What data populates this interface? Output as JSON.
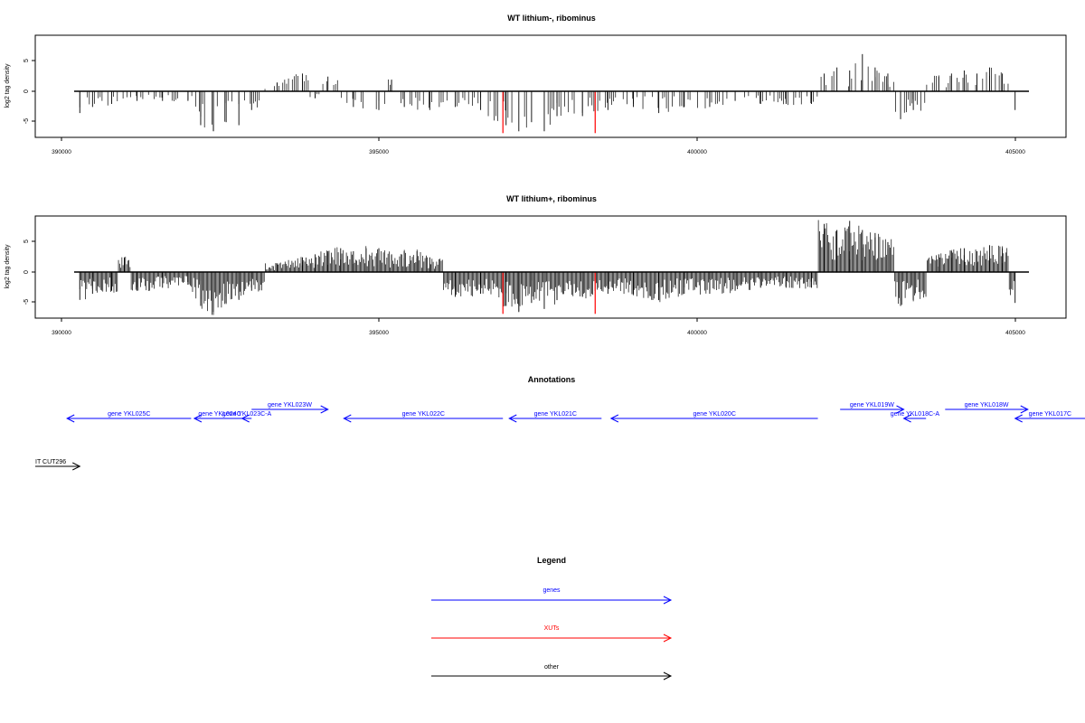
{
  "panels": [
    {
      "title": "WT lithium-, ribominus",
      "ylabel": "log2 tag density",
      "y_ticks": [
        "-5",
        "0",
        "5"
      ],
      "x_ticks": [
        "390000",
        "395000",
        "400000",
        "405000"
      ]
    },
    {
      "title": "WT lithium+, ribominus",
      "ylabel": "log2 tag density",
      "y_ticks": [
        "-5",
        "0",
        "5"
      ],
      "x_ticks": [
        "390000",
        "395000",
        "400000",
        "405000"
      ]
    }
  ],
  "annotations": {
    "title": "Annotations",
    "features": [
      {
        "label": "gene YKL025C",
        "start": 390100,
        "end": 392050,
        "strand": "-",
        "row": 0,
        "color": "#0000ff"
      },
      {
        "label": "gene YKL024C",
        "start": 392100,
        "end": 392900,
        "strand": "-",
        "row": 0,
        "color": "#0000ff"
      },
      {
        "label": "gene YKL023C-A",
        "start": 392850,
        "end": 393000,
        "strand": "-",
        "row": 0,
        "color": "#0000ff"
      },
      {
        "label": "gene YKL023W",
        "start": 393000,
        "end": 394200,
        "strand": "+",
        "row": 1,
        "color": "#0000ff"
      },
      {
        "label": "gene YKL022C",
        "start": 394450,
        "end": 396950,
        "strand": "-",
        "row": 0,
        "color": "#0000ff"
      },
      {
        "label": "gene YKL021C",
        "start": 397050,
        "end": 398500,
        "strand": "-",
        "row": 0,
        "color": "#0000ff"
      },
      {
        "label": "gene YKL020C",
        "start": 398650,
        "end": 401900,
        "strand": "-",
        "row": 0,
        "color": "#0000ff"
      },
      {
        "label": "gene YKL019W",
        "start": 402250,
        "end": 403250,
        "strand": "+",
        "row": 1,
        "color": "#0000ff"
      },
      {
        "label": "gene YKL018C-A",
        "start": 403250,
        "end": 403600,
        "strand": "-",
        "row": 0,
        "color": "#0000ff"
      },
      {
        "label": "gene YKL018W",
        "start": 403900,
        "end": 405200,
        "strand": "+",
        "row": 1,
        "color": "#0000ff"
      },
      {
        "label": "gene YKL017C",
        "start": 405000,
        "end": 406100,
        "strand": "-",
        "row": 0,
        "color": "#0000ff"
      },
      {
        "label": "IT CUT296",
        "start": 389600,
        "end": 390300,
        "strand": "+",
        "row": 3,
        "color": "#000000"
      }
    ]
  },
  "legend": {
    "title": "Legend",
    "items": [
      {
        "label": "genes",
        "color": "#0000ff"
      },
      {
        "label": "XUTs",
        "color": "#ff0000"
      },
      {
        "label": "other",
        "color": "#000000"
      }
    ]
  },
  "chart_data": [
    {
      "type": "bar",
      "title": "WT lithium-, ribominus",
      "xlabel": "",
      "ylabel": "log2 tag density",
      "xlim": [
        389600,
        405800
      ],
      "ylim": [
        -7.5,
        9.3
      ],
      "grid": false,
      "baseline": 0,
      "data_range": [
        390200,
        405200
      ],
      "highlights": [
        {
          "x": 396950,
          "value": -6.8,
          "color": "#ff0000"
        },
        {
          "x": 398400,
          "value": -6.8,
          "color": "#ff0000"
        }
      ],
      "series": [
        {
          "name": "",
          "x": [
            390300,
            390500,
            390800,
            391200,
            391600,
            392000,
            392200,
            392400,
            392600,
            392800,
            393000,
            393400,
            393800,
            394000,
            394200,
            394600,
            395000,
            395200,
            395400,
            395800,
            396200,
            396600,
            397000,
            397200,
            397400,
            397600,
            397800,
            398200,
            398600,
            399000,
            399400,
            399800,
            400200,
            400600,
            401000,
            401400,
            401800,
            402000,
            402200,
            402400,
            402600,
            402800,
            403000,
            403200,
            403400,
            403800,
            404000,
            404200,
            404400,
            404600,
            404800,
            405000
          ],
          "values": [
            -3.5,
            -2.5,
            -2,
            -1.5,
            -1.5,
            -1.5,
            -5.5,
            -6.5,
            -5,
            -5.5,
            -3,
            1.5,
            3,
            -1,
            2.5,
            -2.5,
            -3,
            2,
            -2.5,
            -3,
            -2.5,
            -3,
            -5.5,
            -6.5,
            -5,
            -6.5,
            -4,
            -4,
            -3,
            -2.5,
            -3.5,
            -2.5,
            -2.5,
            -1.5,
            -2,
            -2,
            -2,
            3,
            4,
            3.5,
            6.2,
            4,
            3,
            -4.5,
            -3,
            2.5,
            3,
            3.5,
            3,
            4,
            3,
            -3
          ]
        }
      ]
    },
    {
      "type": "bar",
      "title": "WT lithium+, ribominus",
      "xlabel": "",
      "ylabel": "log2 tag density",
      "xlim": [
        389600,
        405800
      ],
      "ylim": [
        -7.5,
        9.3
      ],
      "grid": false,
      "baseline": 0,
      "data_range": [
        390200,
        405200
      ],
      "highlights": [
        {
          "x": 396950,
          "value": -6.8,
          "color": "#ff0000"
        },
        {
          "x": 398400,
          "value": -6.8,
          "color": "#ff0000"
        }
      ],
      "series": [
        {
          "name": "",
          "x": [
            390300,
            390500,
            390800,
            391000,
            391200,
            391600,
            392000,
            392200,
            392400,
            392600,
            392800,
            393000,
            393400,
            393800,
            394000,
            394200,
            394400,
            394600,
            394800,
            395000,
            395200,
            395400,
            395600,
            395800,
            396200,
            396600,
            397000,
            397200,
            397400,
            397600,
            397800,
            398200,
            398600,
            399000,
            399400,
            399800,
            400200,
            400600,
            401000,
            401400,
            401800,
            402000,
            402200,
            402400,
            402600,
            402800,
            403000,
            403200,
            403400,
            403800,
            404000,
            404200,
            404400,
            404600,
            404800,
            405000
          ],
          "values": [
            -4.5,
            -3.5,
            -3,
            2.5,
            -3,
            -2.5,
            -2,
            -5.5,
            -6.5,
            -5,
            -4.5,
            -3,
            1.5,
            2.5,
            3,
            3.5,
            4,
            3.5,
            4,
            4,
            3,
            3.5,
            3.5,
            2.5,
            -4,
            -3.5,
            -5.5,
            -6.5,
            -5,
            -6,
            -4.5,
            -4,
            -3.5,
            -3.5,
            -4.5,
            -3.5,
            -3.5,
            -3,
            -2.5,
            -2.5,
            -2.5,
            8,
            7,
            8.5,
            7,
            6.5,
            5,
            -5.5,
            -4.5,
            3,
            3.5,
            4,
            3.5,
            4.5,
            4,
            -5
          ]
        }
      ]
    }
  ]
}
